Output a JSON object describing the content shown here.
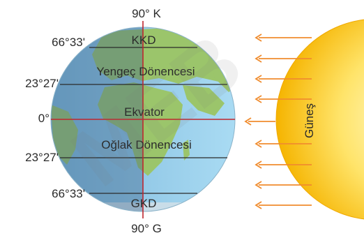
{
  "diagram": {
    "pole_north": "90° K",
    "pole_south": "90° G",
    "sun_label": "Güneş",
    "circles": [
      {
        "name": "KKD",
        "degree": "66°33'"
      },
      {
        "name": "Yengeç Dönencesi",
        "degree": "23°27'"
      },
      {
        "name": "Ekvator",
        "degree": "0°"
      },
      {
        "name": "Oğlak Dönencesi",
        "degree": "23°27'"
      },
      {
        "name": "GKD",
        "degree": "66°33'"
      }
    ],
    "ray_count": 9,
    "watermark": "MEB",
    "colors": {
      "ocean": "#86c5e6",
      "land": "#9bc56b",
      "night_overlay": "#5a7fa3",
      "line": "#2b2b2b",
      "axis": "#c0262e",
      "sun_outer": "#f5b400",
      "sun_inner": "#fff3a0",
      "ray": "#f08c2e"
    }
  }
}
